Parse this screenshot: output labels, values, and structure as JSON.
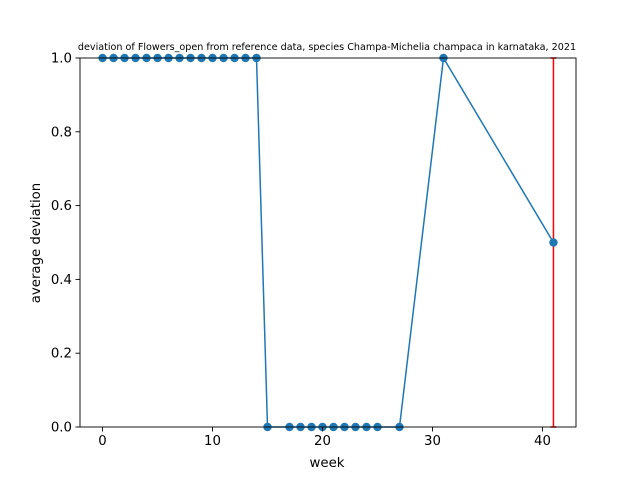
{
  "chart_data": {
    "type": "line",
    "title": "deviation of Flowers_open from reference data, species Champa-Michelia champaca in karnataka, 2021",
    "xlabel": "week",
    "ylabel": "average deviation",
    "xlim": [
      -2.05,
      43.05
    ],
    "ylim": [
      0.0,
      1.0
    ],
    "xticks": [
      0,
      10,
      20,
      30,
      40
    ],
    "yticks": [
      0.0,
      0.2,
      0.4,
      0.6,
      0.8,
      1.0
    ],
    "xtick_labels": [
      "0",
      "10",
      "20",
      "30",
      "40"
    ],
    "ytick_labels": [
      "0.0",
      "0.2",
      "0.4",
      "0.6",
      "0.8",
      "1.0"
    ],
    "grid": false,
    "series": [
      {
        "color": "#1f77b4",
        "marker": "circle",
        "x": [
          0,
          1,
          2,
          3,
          4,
          5,
          6,
          7,
          8,
          9,
          10,
          11,
          12,
          13,
          14,
          15,
          17,
          18,
          19,
          20,
          21,
          22,
          23,
          24,
          25,
          27,
          31,
          41
        ],
        "y": [
          1,
          1,
          1,
          1,
          1,
          1,
          1,
          1,
          1,
          1,
          1,
          1,
          1,
          1,
          1,
          0,
          0,
          0,
          0,
          0,
          0,
          0,
          0,
          0,
          0,
          0,
          1,
          0.5
        ]
      }
    ],
    "error_bars": [
      {
        "x": 41,
        "y": 0.5,
        "low": 0.0,
        "high": 1.0,
        "color": "#ff0000"
      }
    ]
  }
}
